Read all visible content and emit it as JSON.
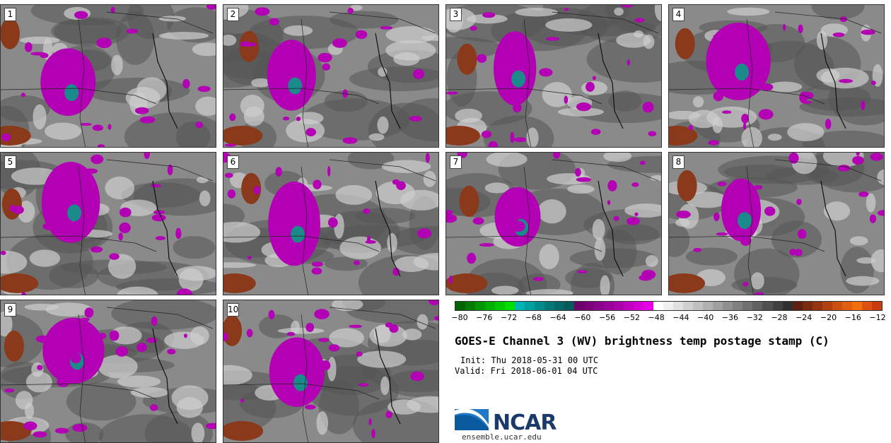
{
  "panels": [
    {
      "label": "1"
    },
    {
      "label": "2"
    },
    {
      "label": "3"
    },
    {
      "label": "4"
    },
    {
      "label": "5"
    },
    {
      "label": "6"
    },
    {
      "label": "7"
    },
    {
      "label": "8"
    },
    {
      "label": "9"
    },
    {
      "label": "10"
    }
  ],
  "colorbar": {
    "ticks": [
      "−80",
      "−76",
      "−72",
      "−68",
      "−64",
      "−60",
      "−56",
      "−52",
      "−48",
      "−44",
      "−40",
      "−36",
      "−32",
      "−28",
      "−24",
      "−20",
      "−16",
      "−12"
    ],
    "colors": [
      "#006400",
      "#007d00",
      "#009600",
      "#00b000",
      "#00c800",
      "#00e000",
      "#00b4b4",
      "#00a0a0",
      "#008c8c",
      "#007878",
      "#006868",
      "#005a5a",
      "#6a006a",
      "#7a007a",
      "#8a008a",
      "#9a009a",
      "#aa00aa",
      "#c000c0",
      "#d400d4",
      "#e600e6",
      "#ffffff",
      "#f0f0f0",
      "#e0e0e0",
      "#d0d0d0",
      "#c0c0c0",
      "#b0b0b0",
      "#a0a0a0",
      "#909090",
      "#808080",
      "#707070",
      "#606060",
      "#505050",
      "#404040",
      "#303030",
      "#602010",
      "#7a2a10",
      "#963410",
      "#b24010",
      "#cc5010",
      "#e06010",
      "#f07010",
      "#e05010",
      "#c83c10"
    ]
  },
  "title": "GOES-E Channel 3 (WV) brightness temp postage stamp (C)",
  "init": "Init: Thu 2018-05-31 00 UTC",
  "valid": "Valid: Fri 2018-06-01 04 UTC",
  "logo": {
    "name": "NCAR",
    "url": "ensemble.ucar.edu"
  },
  "colors": {
    "moist_magenta": "#b400b4",
    "cold_core": "#1a8a8a",
    "warm_brown": "#8a3a1a",
    "dark_gray": "#555555",
    "mid_gray": "#8a8a8a",
    "light_gray": "#cfcfcf"
  }
}
